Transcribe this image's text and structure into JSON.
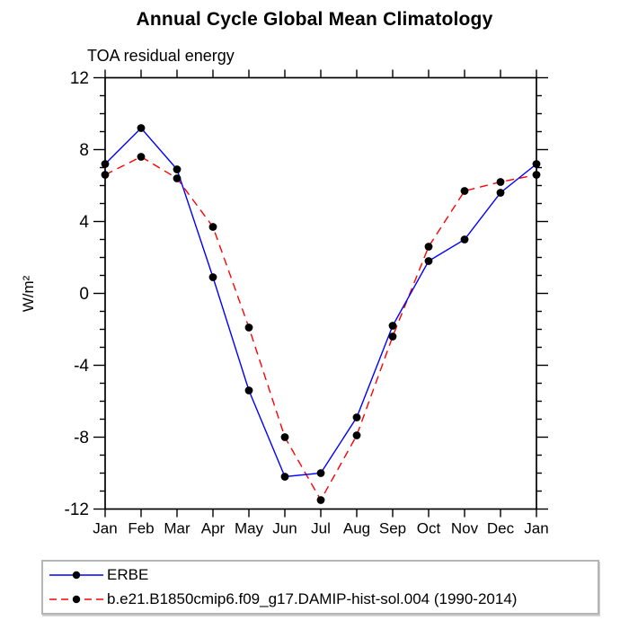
{
  "colors": {
    "erbe_line": "#0000ff",
    "model_line": "#ff0000",
    "marker": "#000000",
    "axis": "#000000",
    "legend_border": "#b5b5b5",
    "background": "#ffffff"
  },
  "chart_data": {
    "type": "line",
    "title": "Annual Cycle Global Mean Climatology",
    "subtitle": "TOA residual energy",
    "ylabel": "W/m²",
    "xlabel": "",
    "categories": [
      "Jan",
      "Feb",
      "Mar",
      "Apr",
      "May",
      "Jun",
      "Jul",
      "Aug",
      "Sep",
      "Oct",
      "Nov",
      "Dec",
      "Jan"
    ],
    "series": [
      {
        "name": "ERBE",
        "color": "#0000ff",
        "style": "solid",
        "marker": "filled-circle",
        "values": [
          7.2,
          9.2,
          6.9,
          0.9,
          -5.4,
          -10.2,
          -10.0,
          -6.9,
          -1.8,
          1.8,
          3.0,
          5.6,
          7.2
        ]
      },
      {
        "name": "b.e21.B1850cmip6.f09_g17.DAMIP-hist-sol.004 (1990-2014)",
        "color": "#ff0000",
        "style": "dashed",
        "marker": "filled-circle",
        "values": [
          6.6,
          7.6,
          6.4,
          3.7,
          -1.9,
          -8.0,
          -11.5,
          -7.9,
          -2.4,
          2.6,
          5.7,
          6.2,
          6.6
        ]
      }
    ],
    "ylim": [
      -12,
      12
    ],
    "y_major_ticks": [
      12,
      8,
      4,
      0,
      -4,
      -8,
      -12
    ],
    "y_minor_step": 1,
    "grid": false,
    "legend_position": "bottom-left",
    "axis_box": true
  }
}
